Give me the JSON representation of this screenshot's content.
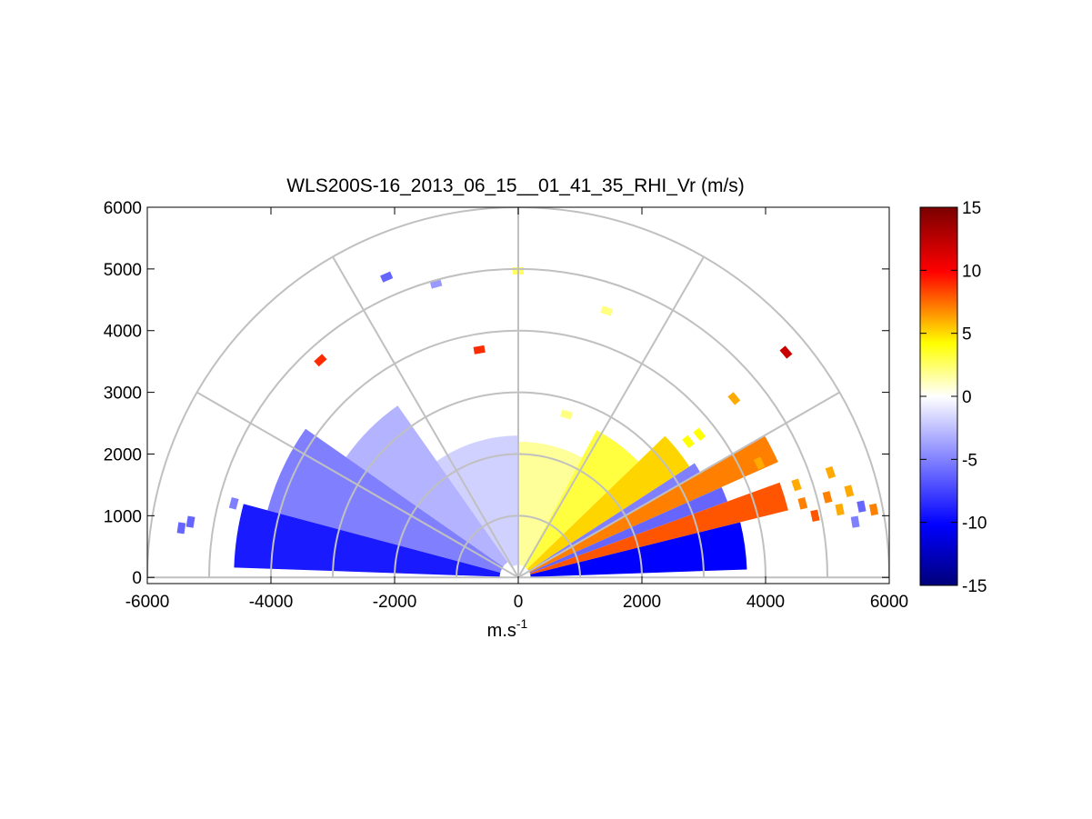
{
  "chart_data": {
    "type": "heatmap",
    "title": "WLS200S-16_2013_06_15__01_41_35_RHI_Vr (m/s)",
    "xlabel": "m.s",
    "xlabel_sup": "-1",
    "ylabel": "",
    "xlim": [
      -6000,
      6000
    ],
    "ylim": [
      -100,
      6000
    ],
    "xticks": [
      -6000,
      -4000,
      -2000,
      0,
      2000,
      4000,
      6000
    ],
    "yticks": [
      0,
      1000,
      2000,
      3000,
      4000,
      5000,
      6000
    ],
    "polar_grid": {
      "range_rings": [
        1000,
        2000,
        3000,
        4000,
        5000,
        6000
      ],
      "spokes_deg": [
        0,
        30,
        60,
        90,
        120,
        150,
        180
      ]
    },
    "colorbar": {
      "clim": [
        -15,
        15
      ],
      "ticks": [
        -15,
        -10,
        -5,
        0,
        5,
        10,
        15
      ],
      "colormap": [
        "#00007a",
        "#0000ff",
        "#ffffff",
        "#ffff00",
        "#ff0000",
        "#7a0000"
      ]
    },
    "regions": [
      {
        "az": [
          2,
          14
        ],
        "r": [
          200,
          3700
        ],
        "v": -10
      },
      {
        "az": [
          14,
          20
        ],
        "r": [
          200,
          4500
        ],
        "v": 8
      },
      {
        "az": [
          20,
          24
        ],
        "r": [
          200,
          3600
        ],
        "v": -6
      },
      {
        "az": [
          24,
          30
        ],
        "r": [
          200,
          4600
        ],
        "v": 7
      },
      {
        "az": [
          30,
          33
        ],
        "r": [
          200,
          3400
        ],
        "v": -5
      },
      {
        "az": [
          33,
          44
        ],
        "r": [
          200,
          3300
        ],
        "v": 5
      },
      {
        "az": [
          44,
          62
        ],
        "r": [
          200,
          2700
        ],
        "v": 3
      },
      {
        "az": [
          62,
          90
        ],
        "r": [
          200,
          2200
        ],
        "v": 1.6
      },
      {
        "az": [
          90,
          125
        ],
        "r": [
          200,
          2300
        ],
        "v": -1.8
      },
      {
        "az": [
          125,
          145
        ],
        "r": [
          300,
          3400
        ],
        "v": -3
      },
      {
        "az": [
          145,
          165
        ],
        "r": [
          300,
          4200
        ],
        "v": -5
      },
      {
        "az": [
          165,
          178
        ],
        "r": [
          300,
          4600
        ],
        "v": -9
      }
    ],
    "points": [
      {
        "x": -5450,
        "y": 800,
        "v": -6
      },
      {
        "x": -5300,
        "y": 900,
        "v": -6
      },
      {
        "x": -4600,
        "y": 1200,
        "v": -5
      },
      {
        "x": -3200,
        "y": 3520,
        "v": 9
      },
      {
        "x": -2130,
        "y": 4870,
        "v": -6
      },
      {
        "x": -1330,
        "y": 4760,
        "v": -4
      },
      {
        "x": -630,
        "y": 3690,
        "v": 9
      },
      {
        "x": 0,
        "y": 4970,
        "v": 2.5
      },
      {
        "x": 1430,
        "y": 4320,
        "v": 2
      },
      {
        "x": 780,
        "y": 2640,
        "v": 2
      },
      {
        "x": 3490,
        "y": 2900,
        "v": 6
      },
      {
        "x": 4330,
        "y": 3650,
        "v": 12
      },
      {
        "x": 5350,
        "y": 1400,
        "v": 6
      },
      {
        "x": 5550,
        "y": 1150,
        "v": -6
      },
      {
        "x": 5750,
        "y": 1100,
        "v": 7
      },
      {
        "x": 4600,
        "y": 1200,
        "v": 7
      },
      {
        "x": 4800,
        "y": 1000,
        "v": 8
      },
      {
        "x": 5000,
        "y": 1300,
        "v": 7
      },
      {
        "x": 5200,
        "y": 1100,
        "v": 6
      },
      {
        "x": 5450,
        "y": 900,
        "v": -5
      },
      {
        "x": 5050,
        "y": 1700,
        "v": 6
      },
      {
        "x": 4500,
        "y": 1500,
        "v": 6
      },
      {
        "x": 3900,
        "y": 1850,
        "v": 6
      },
      {
        "x": 2750,
        "y": 2200,
        "v": 4
      },
      {
        "x": 2930,
        "y": 2320,
        "v": 4
      }
    ]
  }
}
